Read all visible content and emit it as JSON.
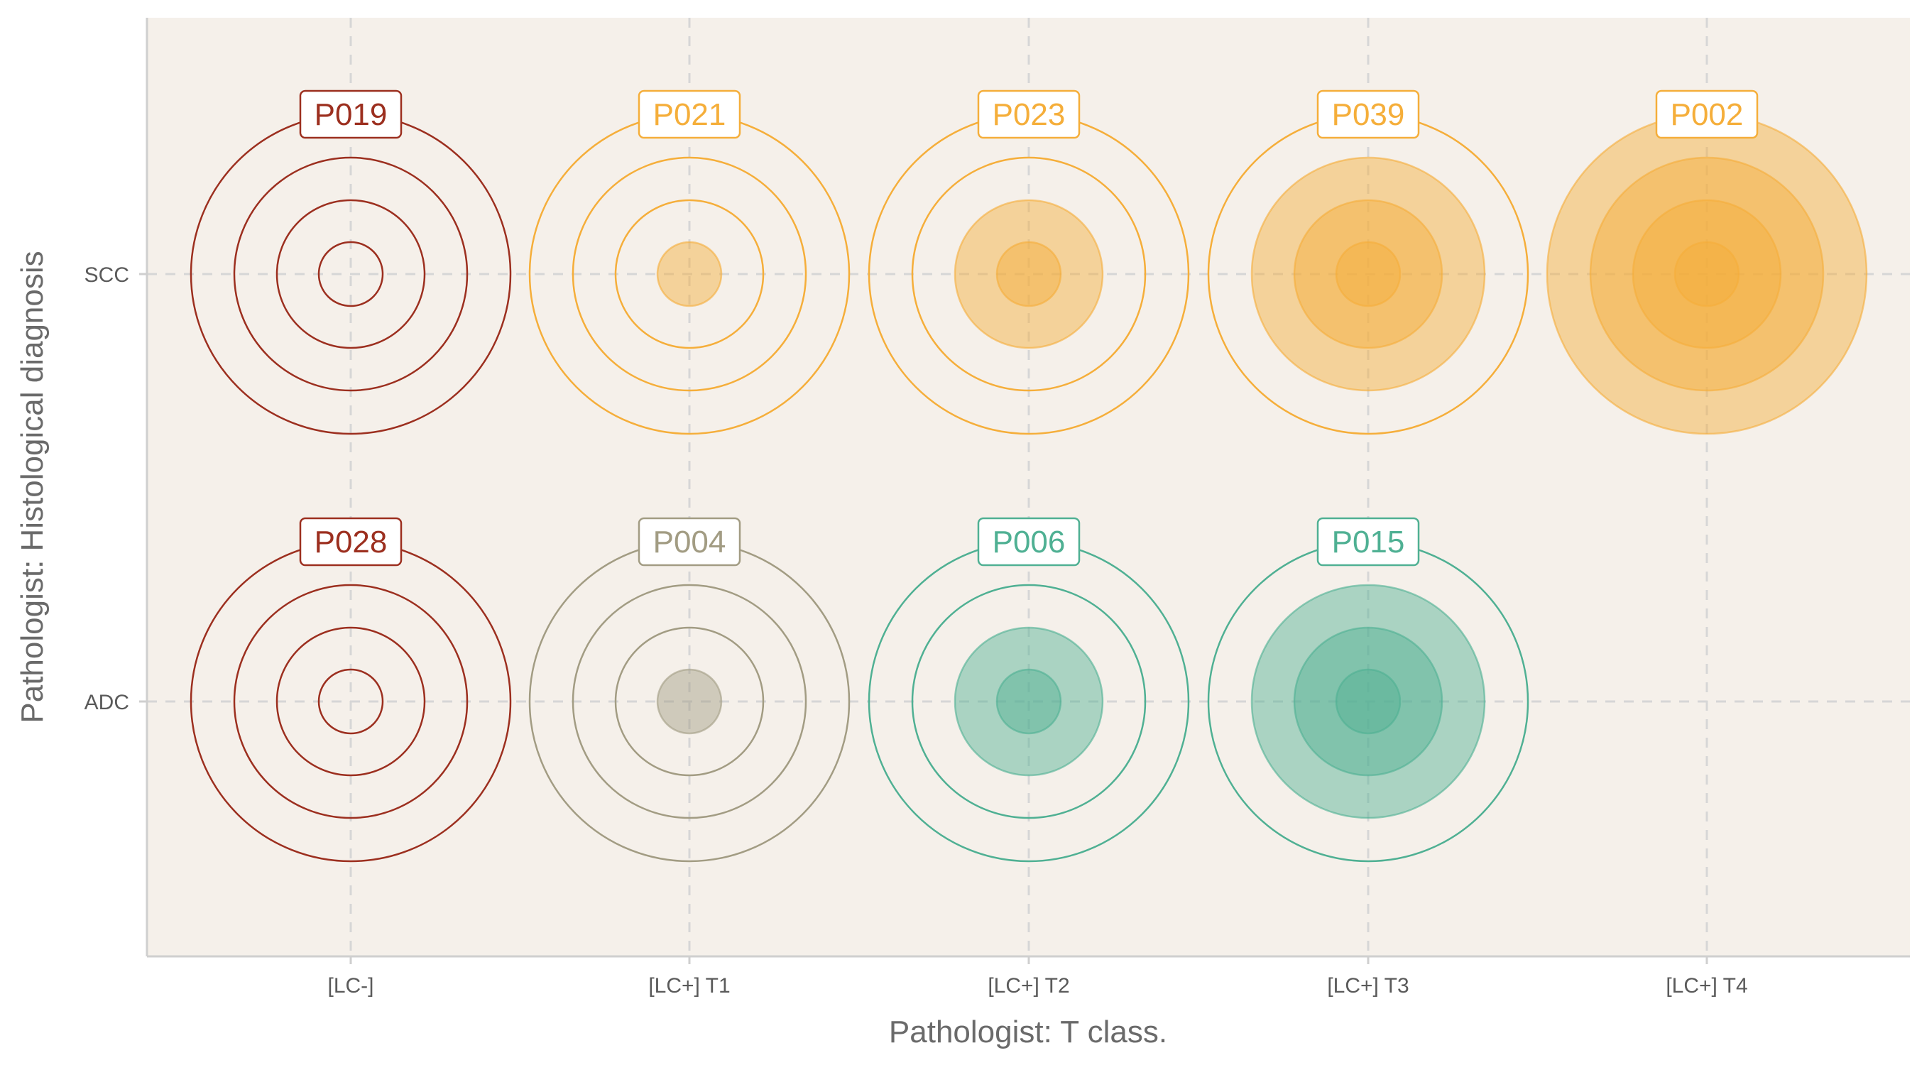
{
  "chart_data": {
    "type": "bubble-target",
    "xlabel": "Pathologist: T class.",
    "ylabel": "Pathologist: Histological diagnosis",
    "x_categories": [
      "[LC-]",
      "[LC+] T1",
      "[LC+] T2",
      "[LC+] T3",
      "[LC+] T4"
    ],
    "y_categories": [
      "SCC",
      "ADC"
    ],
    "ring_levels": 4,
    "grid": true,
    "colors": {
      "panel_background": "#f5f0ea",
      "grid": "#d6d6d6",
      "axis": "#cfcfcf",
      "lc_negative": "#9c2f1f",
      "scc_positive": "#f5ae3a",
      "adc_t1": "#a29c83",
      "adc_positive": "#4fb093"
    },
    "points": [
      {
        "id": "P019",
        "x": "[LC-]",
        "y": "SCC",
        "filled_rings": 0,
        "color_key": "lc_negative"
      },
      {
        "id": "P021",
        "x": "[LC+] T1",
        "y": "SCC",
        "filled_rings": 1,
        "color_key": "scc_positive"
      },
      {
        "id": "P023",
        "x": "[LC+] T2",
        "y": "SCC",
        "filled_rings": 2,
        "color_key": "scc_positive"
      },
      {
        "id": "P039",
        "x": "[LC+] T3",
        "y": "SCC",
        "filled_rings": 3,
        "color_key": "scc_positive"
      },
      {
        "id": "P002",
        "x": "[LC+] T4",
        "y": "SCC",
        "filled_rings": 4,
        "color_key": "scc_positive"
      },
      {
        "id": "P028",
        "x": "[LC-]",
        "y": "ADC",
        "filled_rings": 0,
        "color_key": "lc_negative"
      },
      {
        "id": "P004",
        "x": "[LC+] T1",
        "y": "ADC",
        "filled_rings": 1,
        "color_key": "adc_t1"
      },
      {
        "id": "P006",
        "x": "[LC+] T2",
        "y": "ADC",
        "filled_rings": 2,
        "color_key": "adc_positive"
      },
      {
        "id": "P015",
        "x": "[LC+] T3",
        "y": "ADC",
        "filled_rings": 3,
        "color_key": "adc_positive"
      }
    ]
  }
}
